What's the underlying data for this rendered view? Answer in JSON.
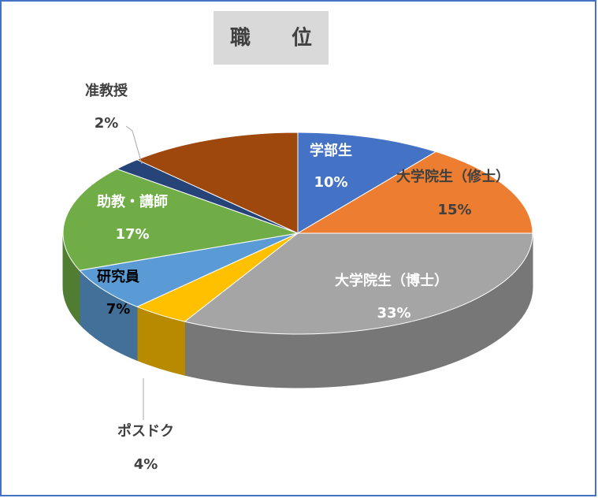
{
  "chart_data": {
    "type": "pie3d",
    "title": "職　　位",
    "categories": [
      "学部生",
      "大学院生（修士）",
      "大学院生（博士）",
      "ポスドク",
      "研究員",
      "助教・講師",
      "准教授",
      null
    ],
    "values": [
      10,
      15,
      33,
      4,
      7,
      17,
      2,
      12
    ],
    "value_labels": [
      "10%",
      "15%",
      "33%",
      "4%",
      "7%",
      "17%",
      "2%",
      null
    ],
    "colors": [
      "#4472c4",
      "#ed7d31",
      "#a5a5a5",
      "#ffc000",
      "#5b9bd5",
      "#70ad47",
      "#264478",
      "#9e480e"
    ]
  }
}
